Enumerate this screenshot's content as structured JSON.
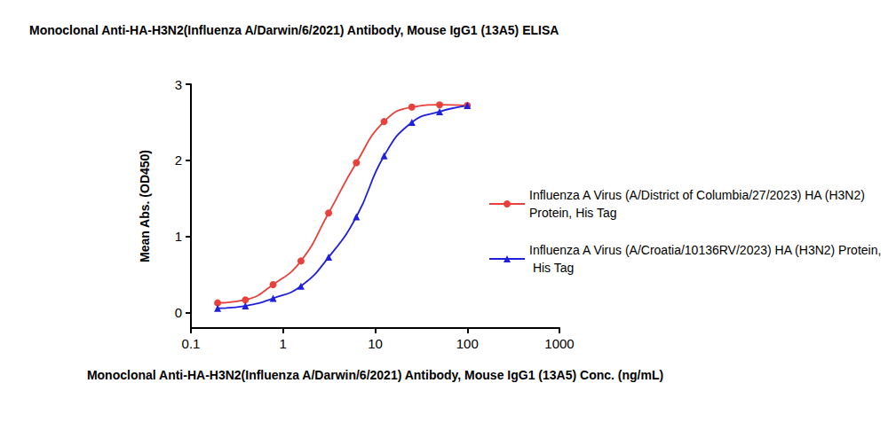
{
  "chart_data": {
    "type": "line",
    "title": "Monoclonal Anti-HA-H3N2(Influenza A/Darwin/6/2021) Antibody, Mouse IgG1 (13A5) ELISA",
    "x_label": "Monoclonal Anti-HA-H3N2(Influenza A/Darwin/6/2021) Antibody, Mouse IgG1 (13A5) Conc. (ng/mL)",
    "y_label": "Mean Abs. (OD450)",
    "x": [
      0.195,
      0.39,
      0.78,
      1.5625,
      3.125,
      6.25,
      12.5,
      25,
      50,
      100
    ],
    "series": [
      {
        "name": "Influenza A Virus (A/District of Columbia/27/2023) HA (H3N2) Protein, His Tag",
        "color": "#e8403a",
        "marker": "circle",
        "line_style": "solid",
        "values": [
          0.13,
          0.17,
          0.37,
          0.68,
          1.31,
          1.97,
          2.51,
          2.7,
          2.73,
          2.72
        ]
      },
      {
        "name": "Influenza A Virus (A/Croatia/10136RV/2023) HA (H3N2) Protein, His Tag",
        "color": "#1f1fe0",
        "marker": "triangle",
        "line_style": "solid",
        "values": [
          0.06,
          0.09,
          0.19,
          0.35,
          0.73,
          1.26,
          2.06,
          2.5,
          2.64,
          2.72
        ]
      }
    ],
    "xlim": [
      0.1,
      1000
    ],
    "xticks": [
      0.1,
      1,
      10,
      100,
      1000
    ],
    "ylim": [
      -0.2,
      3
    ],
    "yticks": [
      0,
      1,
      2,
      3
    ],
    "log": "x",
    "grid": false,
    "legend": "right"
  }
}
